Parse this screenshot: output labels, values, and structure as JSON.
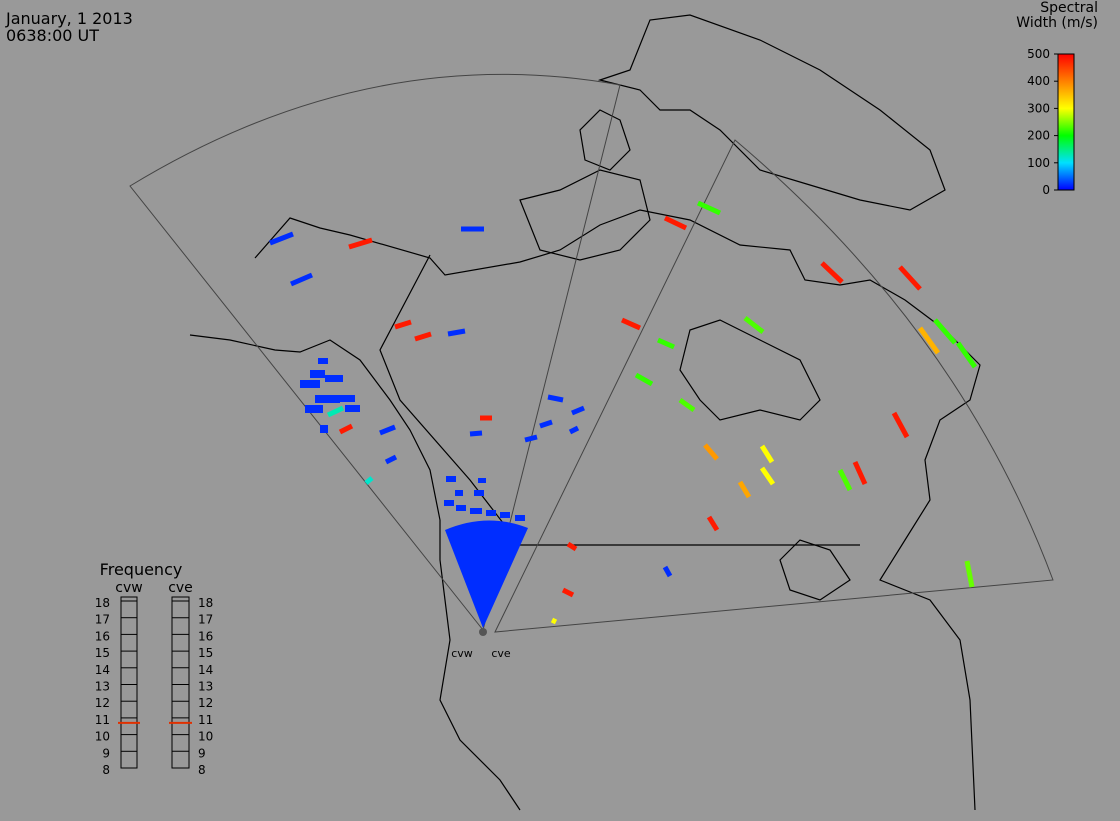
{
  "header": {
    "date": "January, 1 2013",
    "time": "0638:00 UT"
  },
  "colorbar": {
    "title_lines": [
      "Spectral",
      "Width (m/s)"
    ],
    "ticks": [
      0,
      100,
      200,
      300,
      400,
      500
    ],
    "lim": [
      0,
      500
    ]
  },
  "frequency": {
    "title": "Frequency",
    "radars": [
      {
        "name": "cvw",
        "value": 10.7
      },
      {
        "name": "cve",
        "value": 10.7
      }
    ],
    "ticks": [
      8,
      9,
      10,
      11,
      12,
      13,
      14,
      15,
      16,
      17,
      18
    ],
    "lim": [
      8,
      18
    ]
  },
  "sites": [
    "cvw",
    "cve"
  ],
  "echoes": {
    "widths": [
      20,
      480,
      20,
      20,
      480,
      480,
      20,
      480,
      220,
      480,
      220,
      220,
      230,
      230,
      380,
      370,
      300,
      300,
      480,
      480,
      480,
      220,
      360,
      220,
      480,
      480,
      230,
      240,
      480,
      20,
      20,
      20,
      20,
      20,
      20,
      480,
      130,
      120,
      20,
      20,
      480,
      20,
      480,
      300,
      20,
      20,
      20,
      20,
      20,
      20,
      20,
      20,
      20,
      20,
      20,
      20,
      20,
      20,
      20,
      20,
      20,
      20,
      20,
      20
    ]
  }
}
